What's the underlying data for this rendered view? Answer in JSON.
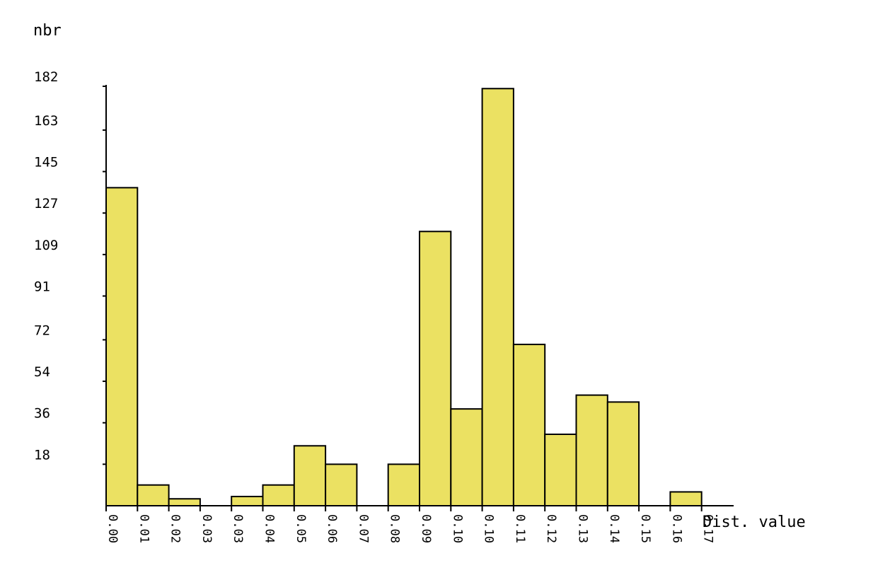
{
  "chart_data": {
    "type": "bar",
    "ylabel": "nbr",
    "xlabel": "Dist. value",
    "y_ticks": [
      18,
      36,
      54,
      72,
      91,
      109,
      127,
      145,
      163,
      182
    ],
    "x_ticks": [
      "0.00",
      "0.01",
      "0.02",
      "0.03",
      "0.03",
      "0.04",
      "0.05",
      "0.06",
      "0.07",
      "0.08",
      "0.09",
      "0.10",
      "0.10",
      "0.11",
      "0.12",
      "0.13",
      "0.14",
      "0.15",
      "0.16",
      "0.17"
    ],
    "ylim": [
      0,
      182
    ],
    "values": [
      138,
      9,
      3,
      0,
      4,
      9,
      26,
      18,
      0,
      18,
      119,
      42,
      181,
      70,
      31,
      48,
      45,
      0,
      6
    ],
    "bar_color": "#ebe162",
    "grid": false
  }
}
